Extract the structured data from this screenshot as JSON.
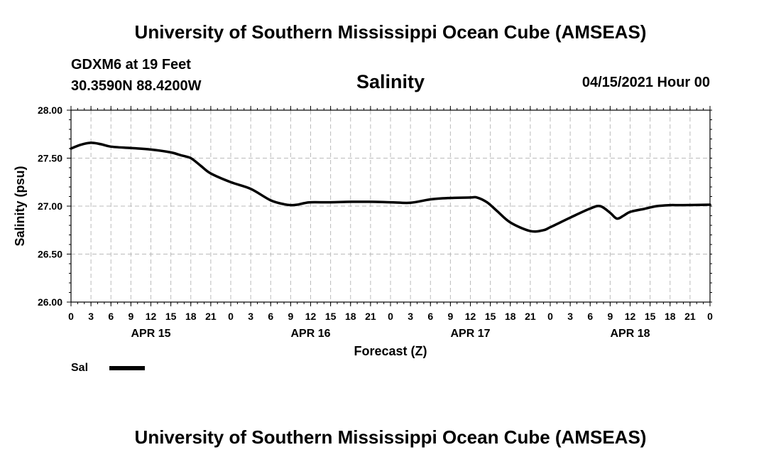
{
  "header": {
    "title": "University of Southern Mississippi Ocean Cube (AMSEAS)",
    "station_line1": "GDXM6 at 19 Feet",
    "station_line2": "30.3590N  88.4200W",
    "variable": "Salinity",
    "datetime": "04/15/2021 Hour 00"
  },
  "footer": {
    "title": "University of Southern Mississippi Ocean Cube (AMSEAS)"
  },
  "chart_data": {
    "type": "line",
    "title": "Salinity",
    "xlabel": "Forecast (Z)",
    "ylabel": "Salinity (psu)",
    "ylim": [
      26.0,
      28.0
    ],
    "yticks": [
      "26.00",
      "26.50",
      "27.00",
      "27.50",
      "28.00"
    ],
    "xlim": [
      0,
      96
    ],
    "xtick_labels": [
      "0",
      "3",
      "6",
      "9",
      "12",
      "15",
      "18",
      "21",
      "0",
      "3",
      "6",
      "9",
      "12",
      "15",
      "18",
      "21",
      "0",
      "3",
      "6",
      "9",
      "12",
      "15",
      "18",
      "21",
      "0",
      "3",
      "6",
      "9",
      "12",
      "15",
      "18",
      "21",
      "0"
    ],
    "day_labels": [
      {
        "hour": 12,
        "label": "APR 15"
      },
      {
        "hour": 36,
        "label": "APR 16"
      },
      {
        "hour": 60,
        "label": "APR 17"
      },
      {
        "hour": 84,
        "label": "APR 18"
      }
    ],
    "grid": true,
    "series": [
      {
        "name": "Sal",
        "color": "#000000",
        "x": [
          0,
          1.5,
          3,
          4.5,
          6,
          9,
          12,
          15,
          16.5,
          18,
          19.5,
          21,
          24,
          27,
          30,
          32,
          33,
          34,
          35,
          36,
          39,
          42,
          45,
          48,
          51,
          54,
          57,
          60,
          61,
          62.5,
          64,
          66,
          69,
          71,
          72,
          75,
          78,
          79.5,
          81,
          82,
          83,
          84,
          86,
          88,
          90,
          92,
          96
        ],
        "values": [
          27.6,
          27.64,
          27.66,
          27.645,
          27.62,
          27.605,
          27.59,
          27.56,
          27.53,
          27.5,
          27.42,
          27.34,
          27.25,
          27.18,
          27.06,
          27.02,
          27.01,
          27.015,
          27.03,
          27.04,
          27.04,
          27.045,
          27.045,
          27.04,
          27.035,
          27.07,
          27.085,
          27.09,
          27.09,
          27.04,
          26.95,
          26.83,
          26.74,
          26.75,
          26.78,
          26.88,
          26.975,
          27.0,
          26.93,
          26.87,
          26.9,
          26.94,
          26.97,
          27.0,
          27.01,
          27.01,
          27.015
        ]
      }
    ],
    "legend": [
      {
        "label": "Sal",
        "color": "#000000"
      }
    ]
  }
}
